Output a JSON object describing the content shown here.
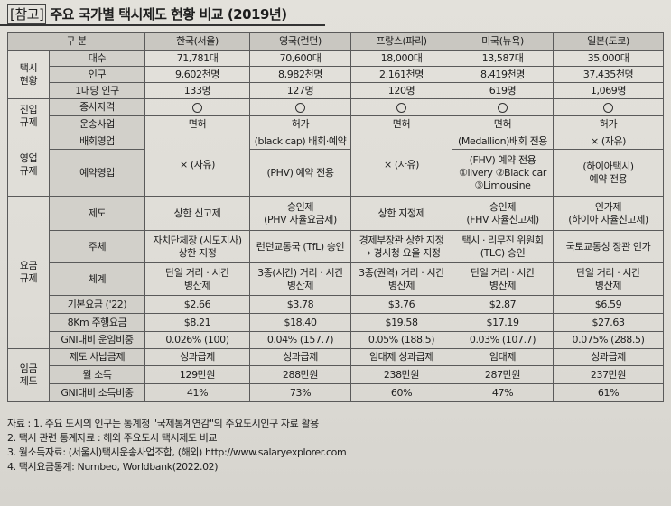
{
  "title": {
    "tag": "[참고]",
    "text": "주요 국가별 택시제도 현황 비교 (2019년)"
  },
  "header": {
    "label": "구 분",
    "countries": [
      "한국(서울)",
      "영국(런던)",
      "프랑스(파리)",
      "미국(뉴욕)",
      "일본(도쿄)"
    ]
  },
  "taxi": {
    "category": [
      "택시",
      "현황"
    ],
    "rows": [
      {
        "label": "대수",
        "values": [
          "71,781대",
          "70,600대",
          "18,000대",
          "13,587대",
          "35,000대"
        ]
      },
      {
        "label": "인구",
        "values": [
          "9,602천명",
          "8,982천명",
          "2,161천명",
          "8,419천명",
          "37,435천명"
        ]
      },
      {
        "label": "1대당 인구",
        "values": [
          "133명",
          "127명",
          "120명",
          "619명",
          "1,069명"
        ]
      }
    ]
  },
  "entry": {
    "category": [
      "진입",
      "규제"
    ],
    "qualification": {
      "label": "종사자격"
    },
    "business": {
      "label": "운송사업",
      "values": [
        "면허",
        "허가",
        "면허",
        "면허",
        "허가"
      ]
    }
  },
  "operation": {
    "category": [
      "영업",
      "규제"
    ],
    "dispatch_label": "배회영업",
    "reserve_label": "예약영업",
    "korea": "× (자유)",
    "uk_dispatch": "(black cap) 배회·예약",
    "uk_reserve": "(PHV) 예약 전용",
    "france": "× (자유)",
    "us_dispatch": "(Medallion)배회 전용",
    "us_reserve": [
      "(FHV) 예약 전용",
      "①livery ②Black car",
      "③Limousine"
    ],
    "jp_dispatch": "× (자유)",
    "jp_reserve": [
      "(하이아택시)",
      "예약 전용"
    ]
  },
  "fare": {
    "category": [
      "요금",
      "규제"
    ],
    "system": {
      "label": "제도",
      "values": [
        [
          "상한 신고제"
        ],
        [
          "승인제",
          "(PHV 자율요금제)"
        ],
        [
          "상한 지정제"
        ],
        [
          "승인제",
          "(FHV 자율신고제)"
        ],
        [
          "인가제",
          "(하이아 자율신고제)"
        ]
      ]
    },
    "authority": {
      "label": "주체",
      "values": [
        [
          "자치단체장 (시도지사)",
          "상한 지정"
        ],
        [
          "런던교통국 (TfL) 승인"
        ],
        [
          "경제부장관 상한 지정",
          "→ 경시청 요율 지정"
        ],
        [
          "택시 · 리무진 위원회",
          "(TLC) 승인"
        ],
        [
          "국토교통성 장관 인가"
        ]
      ]
    },
    "structure": {
      "label": "체계",
      "values": [
        [
          "단일 거리 · 시간",
          "병산제"
        ],
        [
          "3종(시간) 거리 · 시간",
          "병산제"
        ],
        [
          "3종(권역) 거리 · 시간",
          "병산제"
        ],
        [
          "단일 거리 · 시간",
          "병산제"
        ],
        [
          "단일 거리 · 시간",
          "병산제"
        ]
      ]
    },
    "base": {
      "label": "기본요금 ('22)",
      "values": [
        "$2.66",
        "$3.78",
        "$3.76",
        "$2.87",
        "$6.59"
      ]
    },
    "km8": {
      "label": "8Km 주행요금",
      "values": [
        "$8.21",
        "$18.40",
        "$19.58",
        "$17.19",
        "$27.63"
      ]
    },
    "gni": {
      "label": "GNI대비 운임비중",
      "values": [
        "0.026% (100)",
        "0.04% (157.7)",
        "0.05% (188.5)",
        "0.03% (107.7)",
        "0.075% (288.5)"
      ]
    }
  },
  "wage": {
    "category": [
      "임금",
      "제도"
    ],
    "system": {
      "label": "제도 사납금제",
      "values": [
        "성과급제",
        "성과급제",
        "임대제 성과급제",
        "임대제",
        "성과급제"
      ]
    },
    "monthly": {
      "label": "월 소득",
      "values": [
        "129만원",
        "288만원",
        "238만원",
        "287만원",
        "237만원"
      ]
    },
    "gni": {
      "label": "GNI대비 소득비중",
      "values": [
        "41%",
        "73%",
        "60%",
        "47%",
        "61%"
      ]
    }
  },
  "notes": [
    "자료 : 1. 주요 도시의 인구는 통계청 \"국제통계연감\"의 주요도시인구 자료 활용",
    "2. 택시 관련 통계자료 : 해외 주요도시 택시제도 비교",
    "3. 월소득자료: (서울시)택시운송사업조합, (해외) http://www.salaryexplorer.com",
    "4. 택시요금통계: Numbeo, Worldbank(2022.02)"
  ]
}
